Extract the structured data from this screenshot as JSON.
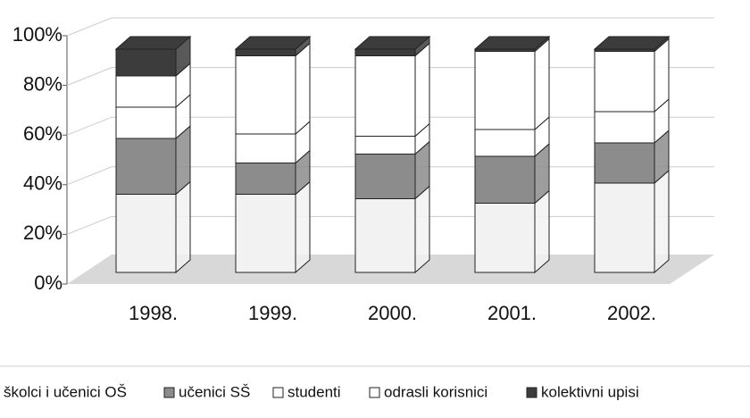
{
  "chart_data": {
    "type": "bar",
    "stacked": true,
    "categories": [
      "1998.",
      "1999.",
      "2000.",
      "2001.",
      "2002."
    ],
    "series": [
      {
        "name": "školci i učenici OŠ",
        "color": "#f2f2f2",
        "values": [
          35,
          35,
          33,
          31,
          40
        ]
      },
      {
        "name": "učenici SŠ",
        "color": "#8c8c8c",
        "values": [
          25,
          14,
          20,
          21,
          18
        ]
      },
      {
        "name": "studenti",
        "color": "#ffffff",
        "values": [
          14,
          13,
          8,
          12,
          14
        ]
      },
      {
        "name": "odrasli korisnici",
        "color": "#ffffff",
        "values": [
          14,
          35,
          36,
          35,
          27
        ]
      },
      {
        "name": "kolektivni upisi",
        "color": "#3c3c3c",
        "values": [
          12,
          3,
          3,
          1,
          1
        ]
      }
    ],
    "ylim": [
      0,
      100
    ],
    "yticks": [
      {
        "value": 0,
        "label": "0%"
      },
      {
        "value": 20,
        "label": "20%"
      },
      {
        "value": 40,
        "label": "40%"
      },
      {
        "value": 60,
        "label": "60%"
      },
      {
        "value": 80,
        "label": "80%"
      },
      {
        "value": 100,
        "label": "100%"
      }
    ],
    "grid": true
  }
}
